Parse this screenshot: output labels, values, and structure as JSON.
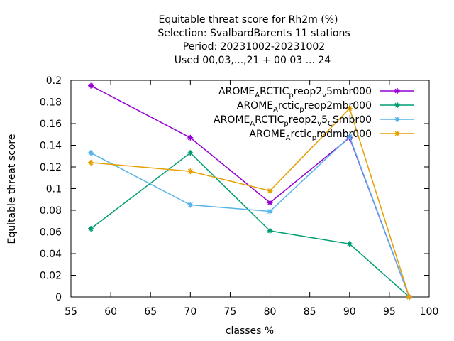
{
  "chart_data": {
    "type": "line",
    "title_lines": [
      "Equitable threat score  for Rh2m (%)",
      "Selection: SvalbardBarents      11 stations",
      "Period: 20231002-20231002",
      "Used  00,03,...,21  + 00 03 ... 24"
    ],
    "xlabel": "classes %",
    "ylabel": "Equitable threat score",
    "xlim": [
      55,
      100
    ],
    "ylim": [
      0,
      0.2
    ],
    "xticks": [
      55,
      60,
      65,
      70,
      75,
      80,
      85,
      90,
      95,
      100
    ],
    "xtick_labels": [
      "55",
      "60",
      "65",
      "70",
      "75",
      "80",
      "85",
      "90",
      "95",
      "100"
    ],
    "yticks": [
      0,
      0.02,
      0.04,
      0.06,
      0.08,
      0.1,
      0.12,
      0.14,
      0.16,
      0.18,
      0.2
    ],
    "ytick_labels": [
      "0",
      "0.02",
      "0.04",
      "0.06",
      "0.08",
      "0.1",
      "0.12",
      "0.14",
      "0.16",
      "0.18",
      "0.2"
    ],
    "grid": false,
    "legend_position": "top-right",
    "series": [
      {
        "name_parts": [
          [
            "AROME",
            "n"
          ],
          [
            "A",
            "sub"
          ],
          [
            "RCTIC",
            "n"
          ],
          [
            "p",
            "sub"
          ],
          [
            "reop2",
            "n"
          ],
          [
            "v",
            "sub"
          ],
          [
            "5mbr000",
            "n"
          ]
        ],
        "color": "#9400d3",
        "x": [
          57.5,
          70,
          80,
          90,
          97.5
        ],
        "y": [
          0.195,
          0.147,
          0.087,
          0.147,
          0.0
        ]
      },
      {
        "name_parts": [
          [
            "AROME",
            "n"
          ],
          [
            "A",
            "sub"
          ],
          [
            "rctic",
            "n"
          ],
          [
            "p",
            "sub"
          ],
          [
            "reop2mbr000",
            "n"
          ]
        ],
        "color": "#009e73",
        "x": [
          57.5,
          70,
          80,
          90,
          97.5
        ],
        "y": [
          0.063,
          0.133,
          0.061,
          0.049,
          0.0
        ]
      },
      {
        "name_parts": [
          [
            "AROME",
            "n"
          ],
          [
            "A",
            "sub"
          ],
          [
            "RCTIC",
            "n"
          ],
          [
            "p",
            "sub"
          ],
          [
            "reop2",
            "n"
          ],
          [
            "v",
            "sub"
          ],
          [
            "5",
            "n"
          ],
          [
            "C",
            "sub"
          ],
          [
            "Smbr00",
            "n"
          ]
        ],
        "color": "#56b4e9",
        "x": [
          57.5,
          70,
          80,
          90,
          97.5
        ],
        "y": [
          0.133,
          0.085,
          0.079,
          0.148,
          0.0
        ]
      },
      {
        "name_parts": [
          [
            "AROME",
            "n"
          ],
          [
            "A",
            "sub"
          ],
          [
            "rctic",
            "n"
          ],
          [
            "p",
            "sub"
          ],
          [
            "rodmbr000",
            "n"
          ]
        ],
        "color": "#e69f00",
        "x": [
          57.5,
          70,
          80,
          90,
          97.5
        ],
        "y": [
          0.124,
          0.116,
          0.098,
          0.174,
          0.0
        ]
      }
    ]
  }
}
